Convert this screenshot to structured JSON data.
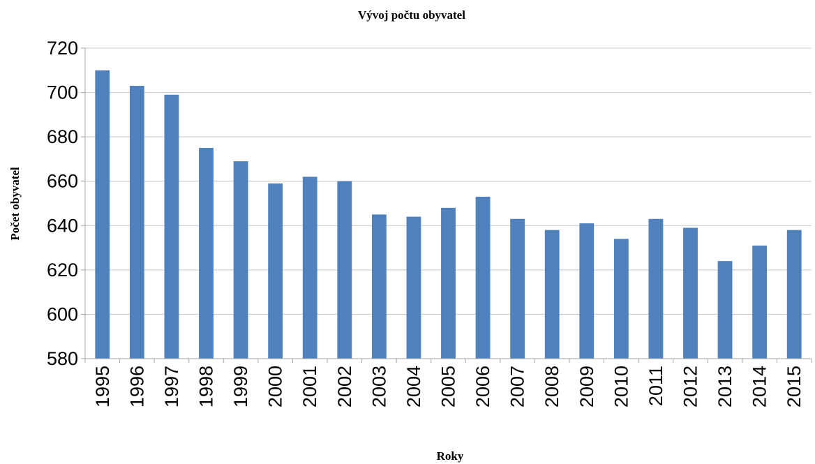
{
  "chart_data": {
    "type": "bar",
    "title": "Vývoj počtu obyvatel",
    "xlabel": "Roky",
    "ylabel": "Počet obyvatel",
    "categories": [
      "1995",
      "1996",
      "1997",
      "1998",
      "1999",
      "2000",
      "2001",
      "2002",
      "2003",
      "2004",
      "2005",
      "2006",
      "2007",
      "2008",
      "2009",
      "2010",
      "2011",
      "2012",
      "2013",
      "2014",
      "2015"
    ],
    "values": [
      710,
      703,
      699,
      675,
      669,
      659,
      662,
      660,
      645,
      644,
      648,
      653,
      643,
      638,
      641,
      634,
      643,
      639,
      624,
      631,
      638
    ],
    "ylim": [
      580,
      720
    ],
    "yticks": [
      580,
      600,
      620,
      640,
      660,
      680,
      700,
      720
    ],
    "grid": true,
    "legend": "none",
    "bar_color": "#4f81bd"
  }
}
